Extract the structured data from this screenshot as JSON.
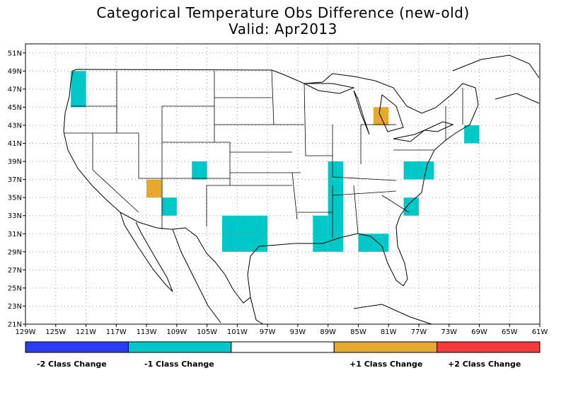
{
  "title": "Categorical Temperature Obs Difference (new-old)",
  "subtitle": "Valid: Apr2013",
  "colors": {
    "minus2": "#2a3cf5",
    "minus1": "#00c8c8",
    "zero": "#ffffff",
    "plus1": "#e6a92e",
    "plus2": "#f5393d"
  },
  "map": {
    "lon_range": [
      -129,
      -61
    ],
    "lat_range": [
      21,
      52
    ],
    "x_ticks": [
      {
        "lon": -129,
        "label": "129W"
      },
      {
        "lon": -125,
        "label": "125W"
      },
      {
        "lon": -121,
        "label": "121W"
      },
      {
        "lon": -117,
        "label": "117W"
      },
      {
        "lon": -113,
        "label": "113W"
      },
      {
        "lon": -109,
        "label": "109W"
      },
      {
        "lon": -105,
        "label": "105W"
      },
      {
        "lon": -101,
        "label": "101W"
      },
      {
        "lon": -97,
        "label": "97W"
      },
      {
        "lon": -93,
        "label": "93W"
      },
      {
        "lon": -89,
        "label": "89W"
      },
      {
        "lon": -85,
        "label": "85W"
      },
      {
        "lon": -81,
        "label": "81W"
      },
      {
        "lon": -77,
        "label": "77W"
      },
      {
        "lon": -73,
        "label": "73W"
      },
      {
        "lon": -69,
        "label": "69W"
      },
      {
        "lon": -65,
        "label": "65W"
      },
      {
        "lon": -61,
        "label": "61W"
      }
    ],
    "y_ticks": [
      {
        "lat": 21,
        "label": "21N"
      },
      {
        "lat": 23,
        "label": "23N"
      },
      {
        "lat": 25,
        "label": "25N"
      },
      {
        "lat": 27,
        "label": "27N"
      },
      {
        "lat": 29,
        "label": "29N"
      },
      {
        "lat": 31,
        "label": "31N"
      },
      {
        "lat": 33,
        "label": "33N"
      },
      {
        "lat": 35,
        "label": "35N"
      },
      {
        "lat": 37,
        "label": "37N"
      },
      {
        "lat": 39,
        "label": "39N"
      },
      {
        "lat": 41,
        "label": "41N"
      },
      {
        "lat": 43,
        "label": "43N"
      },
      {
        "lat": 45,
        "label": "45N"
      },
      {
        "lat": 47,
        "label": "47N"
      },
      {
        "lat": 49,
        "label": "49N"
      },
      {
        "lat": 51,
        "label": "51N"
      }
    ],
    "cells": [
      {
        "lon": [
          -123,
          -121
        ],
        "lat": [
          45,
          49
        ],
        "cat": "minus1"
      },
      {
        "lon": [
          -107,
          -105
        ],
        "lat": [
          37,
          39
        ],
        "cat": "minus1"
      },
      {
        "lon": [
          -111,
          -109
        ],
        "lat": [
          33,
          35
        ],
        "cat": "minus1"
      },
      {
        "lon": [
          -113,
          -111
        ],
        "lat": [
          35,
          37
        ],
        "cat": "plus1"
      },
      {
        "lon": [
          -103,
          -97
        ],
        "lat": [
          29,
          33
        ],
        "cat": "minus1"
      },
      {
        "lon": [
          -91,
          -89
        ],
        "lat": [
          29,
          33
        ],
        "cat": "minus1"
      },
      {
        "lon": [
          -89,
          -87
        ],
        "lat": [
          29,
          39
        ],
        "cat": "minus1"
      },
      {
        "lon": [
          -85,
          -81
        ],
        "lat": [
          29,
          31
        ],
        "cat": "minus1"
      },
      {
        "lon": [
          -79,
          -77
        ],
        "lat": [
          33,
          35
        ],
        "cat": "minus1"
      },
      {
        "lon": [
          -79,
          -75
        ],
        "lat": [
          37,
          39
        ],
        "cat": "minus1"
      },
      {
        "lon": [
          -71,
          -69
        ],
        "lat": [
          41,
          43
        ],
        "cat": "minus1"
      },
      {
        "lon": [
          -83,
          -81
        ],
        "lat": [
          43,
          45
        ],
        "cat": "plus1"
      }
    ]
  },
  "legend": [
    {
      "cat": "minus2",
      "label": "-2 Class Change"
    },
    {
      "cat": "minus1",
      "label": "-1 Class Change"
    },
    {
      "cat": "zero",
      "label": ""
    },
    {
      "cat": "plus1",
      "label": "+1 Class Change"
    },
    {
      "cat": "plus2",
      "label": "+2 Class Change"
    }
  ]
}
